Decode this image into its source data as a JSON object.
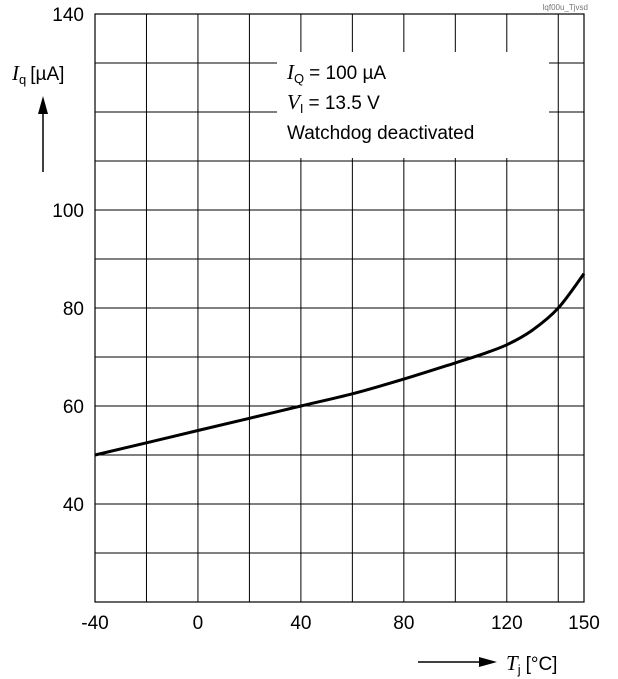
{
  "figure_id": "Iqf00u_Tjvsd",
  "chart_data": {
    "type": "line",
    "xlim": [
      -40,
      150
    ],
    "ylim": [
      20,
      140
    ],
    "grid": true,
    "x_ticks": [
      "-40",
      "0",
      "40",
      "80",
      "120",
      "150"
    ],
    "y_ticks": [
      "140",
      "100",
      "80",
      "60",
      "40"
    ],
    "x_tick_values": [
      -40,
      0,
      40,
      80,
      120,
      150
    ],
    "y_tick_values": [
      140,
      100,
      80,
      60,
      40
    ],
    "x_grid": [
      -40,
      -20,
      0,
      20,
      40,
      60,
      80,
      100,
      120,
      140,
      150
    ],
    "y_grid": [
      20,
      30,
      40,
      50,
      60,
      70,
      80,
      90,
      100,
      110,
      120,
      130,
      140
    ],
    "xlabel": {
      "symbol": "T",
      "sub": "j",
      "unit": "[°C]"
    },
    "ylabel": {
      "symbol": "I",
      "sub": "q",
      "unit": "[µA]"
    },
    "annotations": [
      {
        "symbol": "I",
        "sub": "Q",
        "text": "= 100 µA"
      },
      {
        "symbol": "V",
        "sub": "I",
        "text": "= 13.5 V"
      },
      {
        "symbol": "",
        "sub": "",
        "text": "Watchdog deactivated"
      }
    ],
    "series": [
      {
        "color": "#000000",
        "x": [
          -40,
          -20,
          0,
          20,
          40,
          60,
          80,
          100,
          110,
          120,
          130,
          140,
          150
        ],
        "y": [
          50,
          52.5,
          55,
          57.5,
          60,
          62.5,
          65.5,
          68.8,
          70.5,
          72.5,
          75.5,
          80,
          87
        ]
      }
    ]
  }
}
